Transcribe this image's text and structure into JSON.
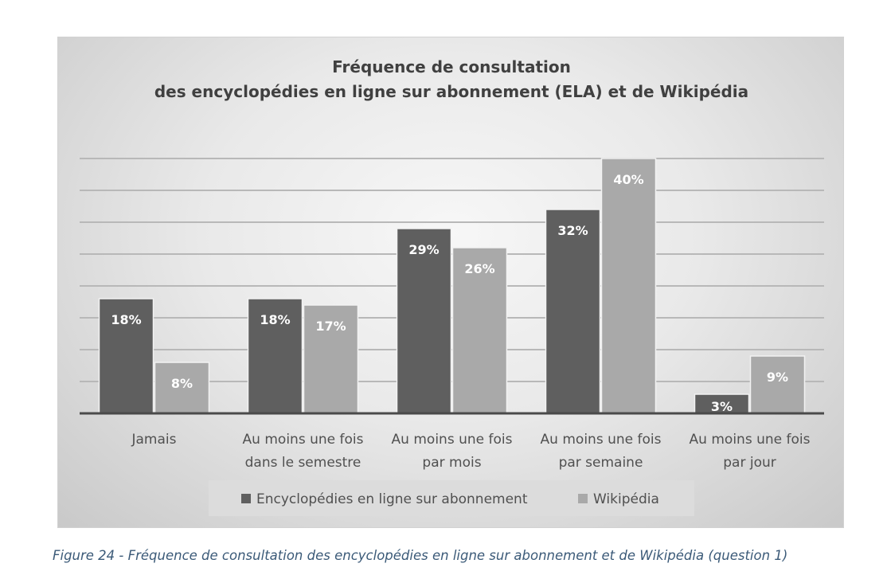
{
  "chart_data": {
    "type": "bar",
    "title": [
      "Fréquence de consultation",
      "des encyclopédies en ligne sur abonnement (ELA) et de Wikipédia"
    ],
    "categories": [
      [
        "Jamais"
      ],
      [
        "Au moins une fois",
        "dans le semestre"
      ],
      [
        "Au moins une fois",
        "par mois"
      ],
      [
        "Au moins une fois",
        "par semaine"
      ],
      [
        "Au moins une fois",
        "par jour"
      ]
    ],
    "series": [
      {
        "name": "Encyclopédies en ligne sur abonnement",
        "color": "#5f5f5f",
        "values": [
          18,
          18,
          29,
          32,
          3
        ],
        "labels": [
          "18%",
          "18%",
          "29%",
          "32%",
          "3%"
        ]
      },
      {
        "name": "Wikipédia",
        "color": "#a9a9a9",
        "values": [
          8,
          17,
          26,
          40,
          9
        ],
        "labels": [
          "8%",
          "17%",
          "26%",
          "40%",
          "9%"
        ]
      }
    ],
    "ylim": [
      0,
      40
    ],
    "grid": true,
    "legend_position": "bottom"
  },
  "caption": "Figure 24 - Fréquence de consultation des encyclopédies en ligne sur abonnement et de Wikipédia (question 1)"
}
